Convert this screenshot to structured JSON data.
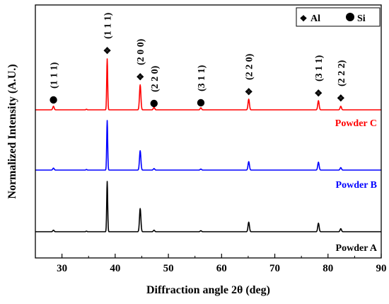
{
  "chart_data": {
    "type": "line",
    "title": "",
    "xlabel": "Diffraction angle 2θ (deg)",
    "ylabel": "Normalized Intensity (A.U.)",
    "xlim": [
      25,
      90
    ],
    "xticks": [
      30,
      40,
      50,
      60,
      70,
      80,
      90
    ],
    "y_ticks_shown": false,
    "grid": false,
    "legend": {
      "placement": "top-right",
      "entries": [
        {
          "symbol": "❖",
          "symbol_name": "diamond-cluster-icon",
          "label": "Al"
        },
        {
          "symbol": "●",
          "symbol_name": "filled-circle-icon",
          "label": "Si"
        }
      ]
    },
    "peaks": [
      {
        "two_theta": 28.4,
        "phase": "Si",
        "hkl": "(1 1 1)"
      },
      {
        "two_theta": 38.5,
        "phase": "Al",
        "hkl": "(1 1 1)"
      },
      {
        "two_theta": 44.7,
        "phase": "Al",
        "hkl": "(2 0 0)"
      },
      {
        "two_theta": 47.3,
        "phase": "Si",
        "hkl": "(2 2 0)"
      },
      {
        "two_theta": 56.1,
        "phase": "Si",
        "hkl": "(3 1 1)"
      },
      {
        "two_theta": 65.1,
        "phase": "Al",
        "hkl": "(2 2 0)"
      },
      {
        "two_theta": 78.2,
        "phase": "Al",
        "hkl": "(3 1 1)"
      },
      {
        "two_theta": 82.4,
        "phase": "Al",
        "hkl": "(2 2 2)"
      }
    ],
    "series": [
      {
        "name": "Powder A",
        "color": "#000000",
        "relative_peak_intensities": [
          0.03,
          1.0,
          0.46,
          0.03,
          0.02,
          0.19,
          0.17,
          0.06
        ]
      },
      {
        "name": "Powder B",
        "color": "#0000ff",
        "relative_peak_intensities": [
          0.04,
          1.0,
          0.39,
          0.03,
          0.02,
          0.17,
          0.16,
          0.05
        ]
      },
      {
        "name": "Powder C",
        "color": "#ff0000",
        "relative_peak_intensities": [
          0.07,
          1.0,
          0.49,
          0.05,
          0.04,
          0.21,
          0.18,
          0.07
        ]
      }
    ]
  }
}
